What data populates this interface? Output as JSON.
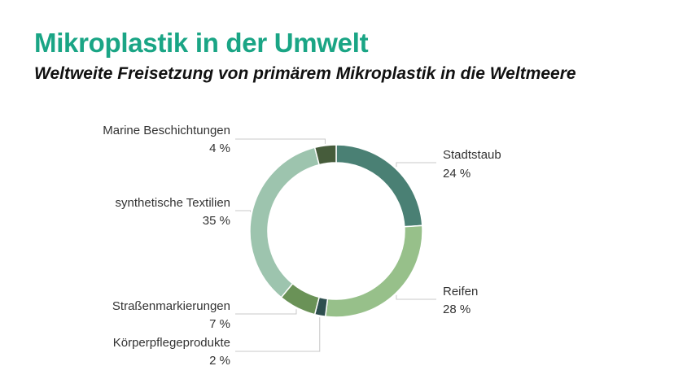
{
  "chart_data": {
    "type": "pie",
    "title": "Mikroplastik in der Umwelt",
    "subtitle": "Weltweite Freisetzung von primärem Mikroplastik in die Weltmeere",
    "donut": true,
    "slices": [
      {
        "name": "Stadtstaub",
        "value": 24,
        "label": "24 %",
        "color": "#4a8074"
      },
      {
        "name": "Reifen",
        "value": 28,
        "label": "28 %",
        "color": "#97c08a"
      },
      {
        "name": "Körperpflegeprodukte",
        "value": 2,
        "label": "2 %",
        "color": "#2e4f4f"
      },
      {
        "name": "Straßenmarkierungen",
        "value": 7,
        "label": "7 %",
        "color": "#6a9257"
      },
      {
        "name": "synthetische Textilien",
        "value": 35,
        "label": "35 %",
        "color": "#9dc4ae"
      },
      {
        "name": "Marine Beschichtungen",
        "value": 4,
        "label": "4 %",
        "color": "#465c3b"
      }
    ]
  }
}
